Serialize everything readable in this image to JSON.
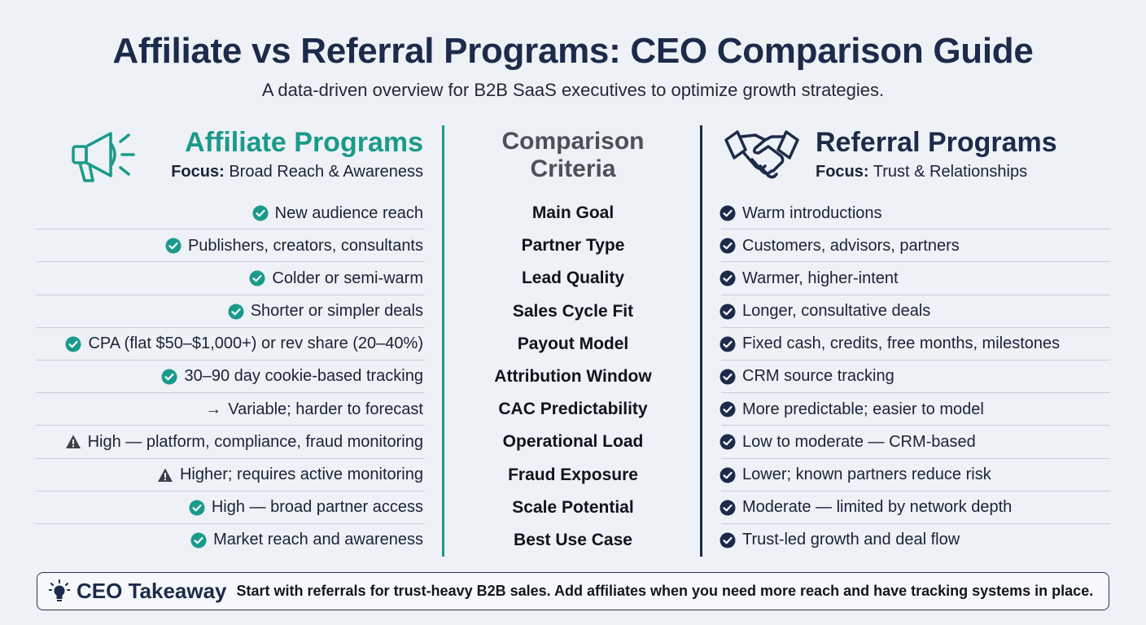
{
  "title": "Affiliate vs Referral Programs: CEO Comparison Guide",
  "subtitle": "A data-driven overview for B2B SaaS executives to optimize growth strategies.",
  "colors": {
    "affiliate": "#1a9a8a",
    "referral": "#1c2b4a",
    "warning": "#3b3f47"
  },
  "affiliate": {
    "title": "Affiliate Programs",
    "focus_label": "Focus:",
    "focus_text": "Broad Reach & Awareness",
    "icon": "megaphone-icon"
  },
  "criteria_header": {
    "line1": "Comparison",
    "line2": "Criteria"
  },
  "referral": {
    "title": "Referral Programs",
    "focus_label": "Focus:",
    "focus_text": "Trust & Relationships",
    "icon": "handshake-icon"
  },
  "rows": [
    {
      "criterion": "Main Goal",
      "affiliate": "New audience reach",
      "affiliate_icon": "check",
      "referral": "Warm introductions"
    },
    {
      "criterion": "Partner Type",
      "affiliate": "Publishers, creators, consultants",
      "affiliate_icon": "check",
      "referral": "Customers, advisors, partners"
    },
    {
      "criterion": "Lead Quality",
      "affiliate": "Colder or semi-warm",
      "affiliate_icon": "check",
      "referral": "Warmer, higher-intent"
    },
    {
      "criterion": "Sales Cycle Fit",
      "affiliate": "Shorter or simpler deals",
      "affiliate_icon": "check",
      "referral": "Longer, consultative deals"
    },
    {
      "criterion": "Payout Model",
      "affiliate": "CPA (flat $50–$1,000+) or rev share (20–40%)",
      "affiliate_icon": "check",
      "referral": "Fixed cash, credits, free months, milestones"
    },
    {
      "criterion": "Attribution Window",
      "affiliate": "30–90 day cookie-based tracking",
      "affiliate_icon": "check",
      "referral": "CRM source tracking"
    },
    {
      "criterion": "CAC Predictability",
      "affiliate": "Variable; harder to forecast",
      "affiliate_icon": "arrow",
      "referral": "More predictable; easier to model"
    },
    {
      "criterion": "Operational Load",
      "affiliate": "High — platform, compliance, fraud monitoring",
      "affiliate_icon": "warning",
      "referral": "Low to moderate — CRM-based"
    },
    {
      "criterion": "Fraud Exposure",
      "affiliate": "Higher; requires active monitoring",
      "affiliate_icon": "warning",
      "referral": "Lower; known partners reduce risk"
    },
    {
      "criterion": "Scale Potential",
      "affiliate": "High — broad partner access",
      "affiliate_icon": "check",
      "referral": "Moderate — limited by network depth"
    },
    {
      "criterion": "Best Use Case",
      "affiliate": "Market reach and awareness",
      "affiliate_icon": "check",
      "referral": "Trust-led growth and deal flow"
    }
  ],
  "takeaway": {
    "label": "CEO Takeaway",
    "text": "Start with referrals for trust-heavy B2B sales. Add affiliates when you need more reach and have tracking systems in place."
  }
}
